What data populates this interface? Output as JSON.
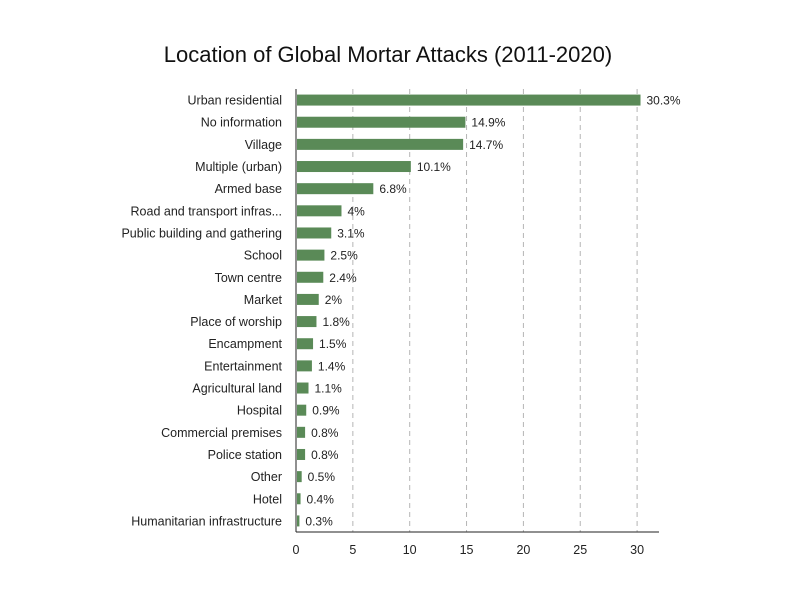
{
  "chart_data": {
    "type": "bar",
    "orientation": "horizontal",
    "title": "Location of Global Mortar Attacks (2011-2020)",
    "xlabel": "",
    "ylabel": "",
    "xlim": [
      0,
      32
    ],
    "xticks": [
      0,
      5,
      10,
      15,
      20,
      25,
      30
    ],
    "grid": "vertical-dashed",
    "bar_color": "#5a8a57",
    "categories": [
      "Urban residential",
      "No information",
      "Village",
      "Multiple (urban)",
      "Armed base",
      "Road and transport infras...",
      "Public building and gathering",
      "School",
      "Town centre",
      "Market",
      "Place of worship",
      "Encampment",
      "Entertainment",
      "Agricultural land",
      "Hospital",
      "Commercial premises",
      "Police station",
      "Other",
      "Hotel",
      "Humanitarian infrastructure"
    ],
    "values": [
      30.3,
      14.9,
      14.7,
      10.1,
      6.8,
      4,
      3.1,
      2.5,
      2.4,
      2,
      1.8,
      1.5,
      1.4,
      1.1,
      0.9,
      0.8,
      0.8,
      0.5,
      0.4,
      0.3
    ],
    "value_labels": [
      "30.3%",
      "14.9%",
      "14.7%",
      "10.1%",
      "6.8%",
      "4%",
      "3.1%",
      "2.5%",
      "2.4%",
      "2%",
      "1.8%",
      "1.5%",
      "1.4%",
      "1.1%",
      "0.9%",
      "0.8%",
      "0.8%",
      "0.5%",
      "0.4%",
      "0.3%"
    ]
  }
}
